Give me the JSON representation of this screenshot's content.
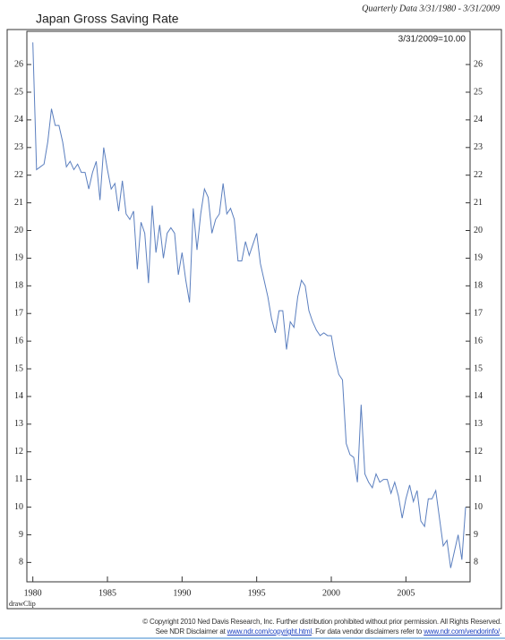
{
  "chart_data": {
    "type": "line",
    "title": "Japan Gross Saving Rate",
    "subtitle": "Quarterly Data 3/31/1980 - 3/31/2009",
    "annotation": "3/31/2009=10.00",
    "caption": "drawClip",
    "color": "#5b7fbf",
    "x": [
      1980,
      1980.25,
      1980.5,
      1980.75,
      1981,
      1981.25,
      1981.5,
      1981.75,
      1982,
      1982.25,
      1982.5,
      1982.75,
      1983,
      1983.25,
      1983.5,
      1983.75,
      1984,
      1984.25,
      1984.5,
      1984.75,
      1985,
      1985.25,
      1985.5,
      1985.75,
      1986,
      1986.25,
      1986.5,
      1986.75,
      1987,
      1987.25,
      1987.5,
      1987.75,
      1988,
      1988.25,
      1988.5,
      1988.75,
      1989,
      1989.25,
      1989.5,
      1989.75,
      1990,
      1990.25,
      1990.5,
      1990.75,
      1991,
      1991.25,
      1991.5,
      1991.75,
      1992,
      1992.25,
      1992.5,
      1992.75,
      1993,
      1993.25,
      1993.5,
      1993.75,
      1994,
      1994.25,
      1994.5,
      1994.75,
      1995,
      1995.25,
      1995.5,
      1995.75,
      1996,
      1996.25,
      1996.5,
      1996.75,
      1997,
      1997.25,
      1997.5,
      1997.75,
      1998,
      1998.25,
      1998.5,
      1998.75,
      1999,
      1999.25,
      1999.5,
      1999.75,
      2000,
      2000.25,
      2000.5,
      2000.75,
      2001,
      2001.25,
      2001.5,
      2001.75,
      2002,
      2002.25,
      2002.5,
      2002.75,
      2003,
      2003.25,
      2003.5,
      2003.75,
      2004,
      2004.25,
      2004.5,
      2004.75,
      2005,
      2005.25,
      2005.5,
      2005.75,
      2006,
      2006.25,
      2006.5,
      2006.75,
      2007,
      2007.25,
      2007.5,
      2007.75,
      2008,
      2008.25,
      2008.5,
      2008.75,
      2009
    ],
    "values": [
      26.8,
      22.2,
      22.3,
      22.4,
      23.2,
      24.4,
      23.8,
      23.8,
      23.2,
      22.3,
      22.5,
      22.2,
      22.4,
      22.1,
      22.1,
      21.5,
      22.1,
      22.5,
      21.1,
      23.0,
      22.2,
      21.5,
      21.7,
      20.7,
      21.8,
      20.6,
      20.4,
      20.7,
      18.6,
      20.3,
      19.9,
      18.1,
      20.9,
      19.2,
      20.2,
      19.0,
      19.9,
      20.1,
      19.9,
      18.4,
      19.2,
      18.2,
      17.4,
      20.8,
      19.3,
      20.6,
      21.5,
      21.2,
      19.9,
      20.4,
      20.6,
      21.7,
      20.6,
      20.8,
      20.4,
      18.9,
      18.9,
      19.6,
      19.1,
      19.5,
      19.9,
      18.8,
      18.2,
      17.6,
      16.8,
      16.3,
      17.1,
      17.1,
      15.7,
      16.7,
      16.5,
      17.6,
      18.2,
      18.0,
      17.1,
      16.7,
      16.4,
      16.2,
      16.3,
      16.2,
      16.2,
      15.4,
      14.8,
      14.6,
      12.3,
      11.9,
      11.8,
      10.9,
      13.7,
      11.2,
      10.9,
      10.7,
      11.2,
      10.9,
      11.0,
      11.0,
      10.5,
      10.9,
      10.4,
      9.6,
      10.3,
      10.8,
      10.2,
      10.6,
      9.5,
      9.3,
      10.3,
      10.3,
      10.6,
      9.6,
      8.6,
      8.8,
      7.8,
      8.4,
      9.0,
      8.1,
      10.0
    ],
    "xlim": [
      1979.6,
      2009.3
    ],
    "xticks": [
      1980,
      1985,
      1990,
      1995,
      2000,
      2005
    ],
    "ylim": [
      7.3,
      27.2
    ],
    "yticks": [
      8,
      9,
      10,
      11,
      12,
      13,
      14,
      15,
      16,
      17,
      18,
      19,
      20,
      21,
      22,
      23,
      24,
      25,
      26
    ],
    "grid": false
  },
  "footer": {
    "line1": "© Copyright 2010 Ned Davis Research, Inc.  Further distribution prohibited without prior permission.  All Rights Reserved.",
    "line2_a": "See NDR Disclaimer at ",
    "link1": "www.ndr.com/copyright.html",
    "line2_b": ". For data vendor disclaimers refer to ",
    "link2": "www.ndr.com/vendorinfo/",
    "line2_c": "."
  }
}
